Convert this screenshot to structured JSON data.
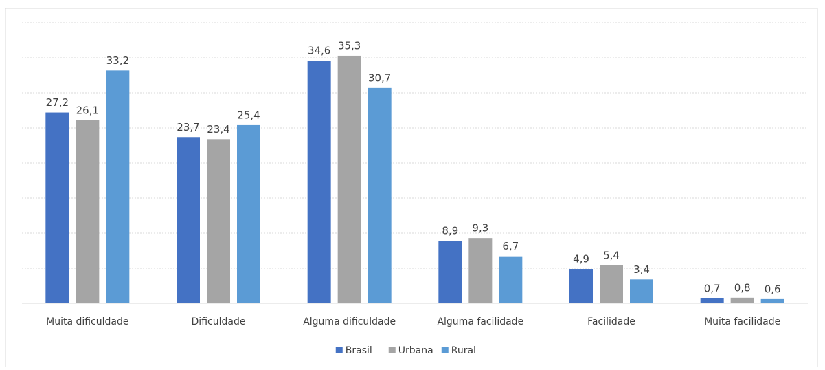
{
  "chart_data": {
    "type": "bar",
    "categories": [
      "Muita dificuldade",
      "Dificuldade",
      "Alguma dificuldade",
      "Alguma facilidade",
      "Facilidade",
      "Muita facilidade"
    ],
    "series": [
      {
        "name": "Brasil",
        "color": "#4472c4",
        "values": [
          27.2,
          23.7,
          34.6,
          8.9,
          4.9,
          0.7
        ],
        "value_labels": [
          "27,2",
          "23,7",
          "34,6",
          "8,9",
          "4,9",
          "0,7"
        ]
      },
      {
        "name": "Urbana",
        "color": "#a5a5a5",
        "values": [
          26.1,
          23.4,
          35.3,
          9.3,
          5.4,
          0.8
        ],
        "value_labels": [
          "26,1",
          "23,4",
          "35,3",
          "9,3",
          "5,4",
          "0,8"
        ]
      },
      {
        "name": "Rural",
        "color": "#5b9bd5",
        "values": [
          33.2,
          25.4,
          30.7,
          6.7,
          3.4,
          0.6
        ],
        "value_labels": [
          "33,2",
          "25,4",
          "30,7",
          "6,7",
          "3,4",
          "0,6"
        ]
      }
    ],
    "ylim": [
      0,
      40
    ],
    "yticks": [
      0,
      5,
      10,
      15,
      20,
      25,
      30,
      35,
      40
    ],
    "grid": true,
    "legend": "bottom"
  }
}
